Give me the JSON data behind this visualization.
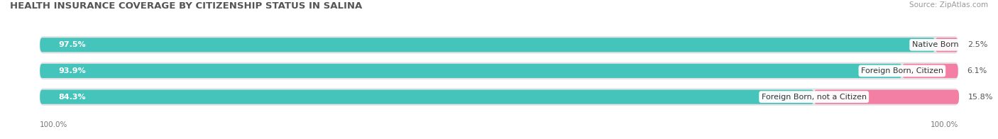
{
  "title": "HEALTH INSURANCE COVERAGE BY CITIZENSHIP STATUS IN SALINA",
  "source": "Source: ZipAtlas.com",
  "categories": [
    "Native Born",
    "Foreign Born, Citizen",
    "Foreign Born, not a Citizen"
  ],
  "with_coverage": [
    97.5,
    93.9,
    84.3
  ],
  "without_coverage": [
    2.5,
    6.1,
    15.8
  ],
  "color_with": "#45C4BC",
  "color_without": "#F47FA4",
  "bar_bg": "#E4E4E4",
  "title_fontsize": 9.5,
  "source_fontsize": 7.5,
  "label_fontsize": 8.0,
  "tick_fontsize": 7.5,
  "legend_fontsize": 8.0,
  "x_label": "100.0%"
}
